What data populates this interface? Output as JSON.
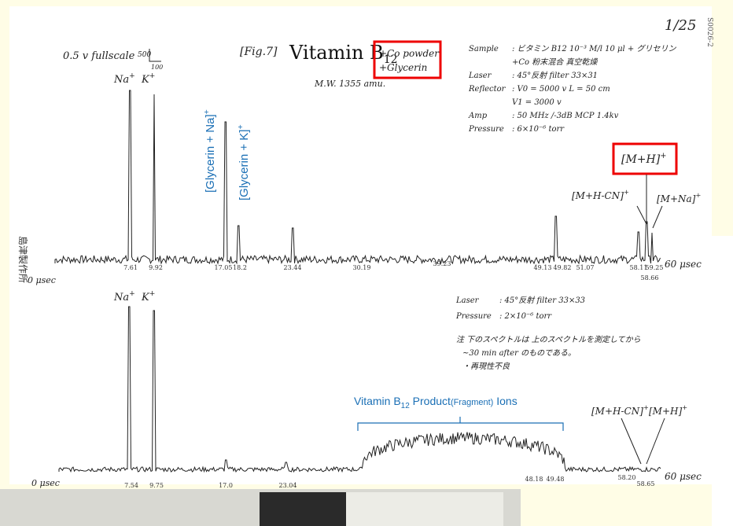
{
  "header": {
    "page_number": "1/25",
    "doc_code": "S0026-2",
    "fullscale": "0.5 v fullscale",
    "scale_top": "500",
    "scale_bottom": "100",
    "fig_label": "[Fig.7]",
    "title": {
      "base": "Vitamin B",
      "sub": "12"
    },
    "additives": [
      "+Co powder",
      "+Glycerin"
    ],
    "mw": "M.W. 1355 amu.",
    "side_label": "島津製作所"
  },
  "conditions_top": [
    [
      "Sample",
      ": ビタミン B12 10⁻³ M/l 10 μl + グリセリン"
    ],
    [
      "",
      "+Co 粉末混合 真空乾燥"
    ],
    [
      "Laser",
      ": 45°反射 filter 33×31"
    ],
    [
      "Reflector",
      ": V0 = 5000 v   L = 50 cm"
    ],
    [
      "",
      "  V1 = 3000 v"
    ],
    [
      "Amp",
      ": 50 MHz /-3dB  MCP 1.4kv"
    ],
    [
      "Pressure",
      ": 6×10⁻⁶ torr"
    ]
  ],
  "spectrum_top": {
    "start": "0 μsec",
    "end": "60 μsec",
    "peaks": [
      {
        "text": "Na",
        "sup": "+"
      },
      {
        "text": "K",
        "sup": "+"
      }
    ],
    "glycerin_labels": [
      {
        "text": "[Glycerin + Na]",
        "sup": "+"
      },
      {
        "text": "[Glycerin + K]",
        "sup": "+"
      }
    ],
    "ion_labels": [
      {
        "text": "[M+H-CN]",
        "sup": "+"
      },
      {
        "text": "[M+H]",
        "sup": "+"
      },
      {
        "text": "[M+Na]",
        "sup": "+"
      }
    ],
    "times": [
      "7.61",
      "9.92",
      "17.05",
      "18.2",
      "23.44",
      "30.19",
      "39.23",
      "49.13",
      "49.82",
      "51.07",
      "58.11",
      "59.25",
      "58.66"
    ]
  },
  "conditions_bottom": [
    [
      "Laser",
      ": 45°反射 filter 33×33"
    ],
    [
      "Pressure",
      ": 2×10⁻⁶ torr"
    ]
  ],
  "notes": [
    "注 下のスペクトルは 上のスペクトルを測定してから",
    "~30 min after のものである。",
    "・再現性不良"
  ],
  "spectrum_bottom": {
    "start": "0 μsec",
    "end": "60 μsec",
    "peaks": [
      {
        "text": "Na",
        "sup": "+"
      },
      {
        "text": "K",
        "sup": "+"
      }
    ],
    "fragment": {
      "pre": "Vitamin B",
      "sub": "12",
      "mid": " Product",
      "small": "(Fragment)",
      "post": " Ions"
    },
    "ion_labels": [
      {
        "text": "[M+H-CN]",
        "sup": "+"
      },
      {
        "text": "[M+H]",
        "sup": "+"
      }
    ],
    "times": [
      "7.54",
      "9.75",
      "17.0",
      "23.04",
      "48.18",
      "49.48",
      "58.20",
      "58.65"
    ]
  }
}
